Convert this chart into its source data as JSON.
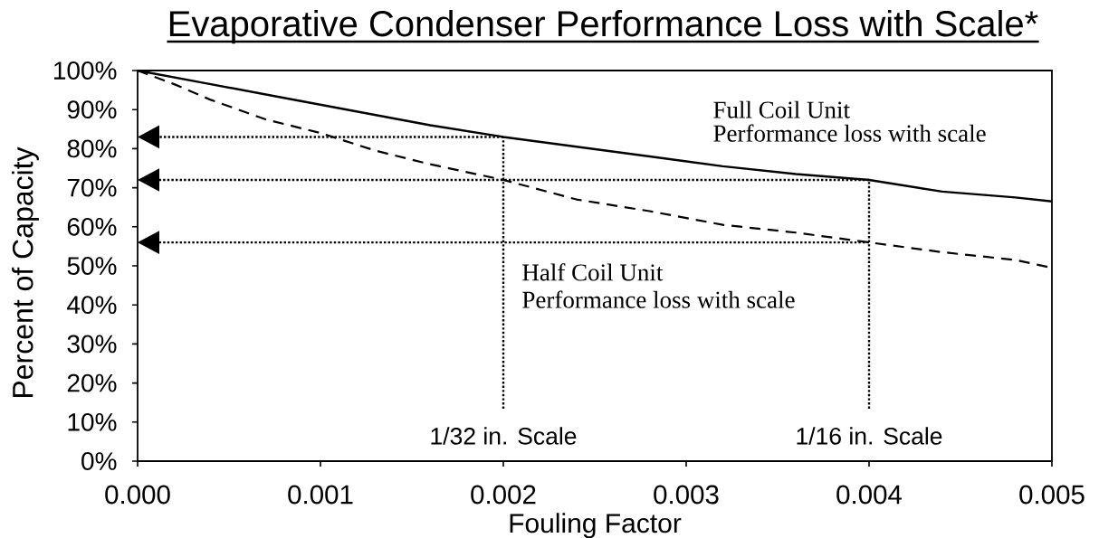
{
  "chart_data": {
    "type": "line",
    "title": "Evaporative Condenser Performance Loss with Scale*",
    "xlabel": "Fouling Factor",
    "ylabel": "Percent of Capacity",
    "xlim": [
      0,
      0.005
    ],
    "ylim": [
      0,
      100
    ],
    "xticks": [
      {
        "value": 0,
        "label": "0.000"
      },
      {
        "value": 0.001,
        "label": "0.001"
      },
      {
        "value": 0.002,
        "label": "0.002"
      },
      {
        "value": 0.003,
        "label": "0.003"
      },
      {
        "value": 0.004,
        "label": "0.004"
      },
      {
        "value": 0.005,
        "label": "0.005"
      }
    ],
    "yticks": [
      {
        "value": 0,
        "label": "0%"
      },
      {
        "value": 10,
        "label": "10%"
      },
      {
        "value": 20,
        "label": "20%"
      },
      {
        "value": 30,
        "label": "30%"
      },
      {
        "value": 40,
        "label": "40%"
      },
      {
        "value": 50,
        "label": "50%"
      },
      {
        "value": 60,
        "label": "60%"
      },
      {
        "value": 70,
        "label": "70%"
      },
      {
        "value": 80,
        "label": "80%"
      },
      {
        "value": 90,
        "label": "90%"
      },
      {
        "value": 100,
        "label": "100%"
      }
    ],
    "series": [
      {
        "color": "#000000",
        "line_style": "solid",
        "x": [
          0,
          0.0004,
          0.0008,
          0.0012,
          0.0016,
          0.002,
          0.0024,
          0.0028,
          0.0032,
          0.0036,
          0.004,
          0.0044,
          0.0048,
          0.005
        ],
        "values": [
          100,
          96.5,
          93,
          89.5,
          86,
          83,
          80.5,
          78,
          75.5,
          73.5,
          72,
          69,
          67.5,
          66.5
        ]
      },
      {
        "color": "#000000",
        "line_style": "dashed",
        "x": [
          0,
          0.0002,
          0.0004,
          0.0007,
          0.001,
          0.0013,
          0.0016,
          0.002,
          0.0024,
          0.0028,
          0.0032,
          0.0036,
          0.004,
          0.0044,
          0.0048,
          0.005
        ],
        "values": [
          100,
          96.5,
          92.5,
          87.5,
          84,
          79.5,
          76,
          72,
          67,
          64,
          60.5,
          58.5,
          56,
          53.5,
          51.5,
          49.5
        ]
      }
    ],
    "annotations": [
      "Full Coil Unit",
      "Performance loss with scale",
      "Half Coil Unit",
      "Performance loss with scale",
      {
        "text": "1/32 in. Scale",
        "x": 0.002,
        "y": 83
      },
      {
        "text": "1/16 in. Scale",
        "x": 0.004,
        "y": 72
      }
    ]
  }
}
